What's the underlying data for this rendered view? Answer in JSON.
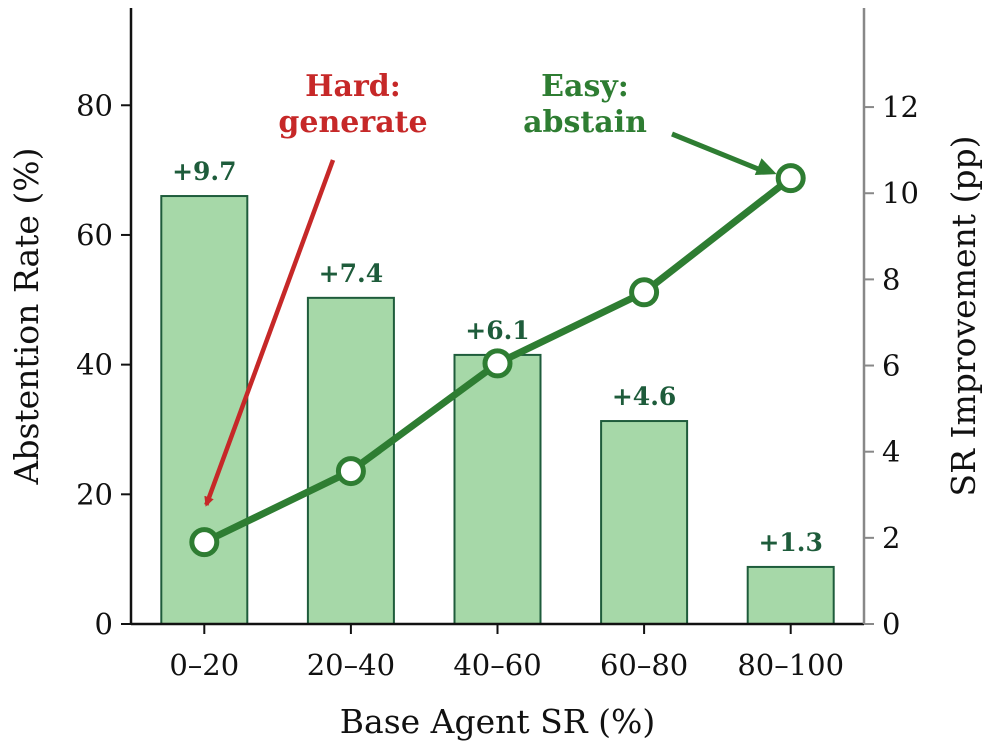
{
  "chart_data": {
    "type": "bar",
    "categories": [
      "0–20",
      "20–40",
      "40–60",
      "60–80",
      "80–100"
    ],
    "series": [
      {
        "kind": "bar",
        "axis": "left",
        "values": [
          66,
          50.3,
          41.5,
          31.3,
          8.8
        ],
        "labels": [
          "+9.7",
          "+7.4",
          "+6.1",
          "+4.6",
          "+1.3"
        ],
        "color": "#a6d8a8",
        "edgecolor": "#1e5c3b"
      },
      {
        "kind": "line",
        "axis": "right",
        "values": [
          1.9,
          3.55,
          6.05,
          7.7,
          10.35
        ],
        "color": "#2e7d32"
      }
    ],
    "xlabel": "Base Agent SR (%)",
    "ylabel": "Abstention Rate (%)",
    "y2label": "SR Improvement (pp)",
    "ylim": [
      0,
      95
    ],
    "y2lim": [
      0,
      14.3
    ],
    "yticks": [
      0,
      20,
      40,
      60,
      80
    ],
    "y2ticks": [
      0,
      2,
      4,
      6,
      8,
      10,
      12
    ],
    "grid": false,
    "annotations": [
      {
        "lines": [
          "Hard:",
          "generate"
        ],
        "color": "#c62828",
        "target_category": "0–20",
        "target_value": 2.3,
        "axis": "right"
      },
      {
        "lines": [
          "Easy:",
          "abstain"
        ],
        "color": "#2e7d32",
        "target_category": "80–100",
        "target_value": 10.35,
        "axis": "right"
      }
    ]
  }
}
